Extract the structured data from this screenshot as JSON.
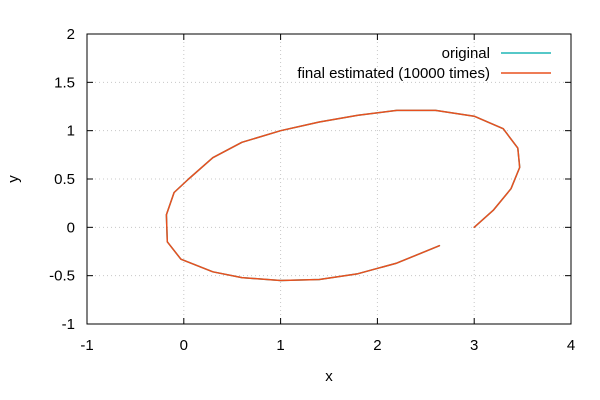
{
  "chart_data": {
    "type": "line",
    "title": "",
    "xlabel": "x",
    "ylabel": "y",
    "xlim": [
      -1,
      4
    ],
    "ylim": [
      -1,
      2
    ],
    "xticks": [
      "-1",
      "0",
      "1",
      "2",
      "3",
      "4"
    ],
    "yticks": [
      "-1",
      "-0.5",
      "0",
      "0.5",
      "1",
      "1.5",
      "2"
    ],
    "grid": true,
    "legend_position": "top-right",
    "series": [
      {
        "name": "original",
        "color": "#1fb5b5",
        "x": [
          3.0,
          3.2,
          3.38,
          3.47,
          3.45,
          3.3,
          3.0,
          2.6,
          2.2,
          1.8,
          1.4,
          1.0,
          0.6,
          0.3,
          0.05,
          -0.1,
          -0.18,
          -0.17,
          -0.03,
          0.3,
          0.6,
          1.0,
          1.4,
          1.8,
          2.2,
          2.64
        ],
        "y": [
          0.0,
          0.18,
          0.4,
          0.62,
          0.82,
          1.02,
          1.15,
          1.21,
          1.21,
          1.16,
          1.09,
          1.0,
          0.88,
          0.72,
          0.5,
          0.36,
          0.13,
          -0.15,
          -0.33,
          -0.46,
          -0.52,
          -0.55,
          -0.54,
          -0.48,
          -0.37,
          -0.19
        ]
      },
      {
        "name": "final estimated (10000 times)",
        "color": "#e8501f",
        "x": [
          3.0,
          3.2,
          3.38,
          3.47,
          3.45,
          3.3,
          3.0,
          2.6,
          2.2,
          1.8,
          1.4,
          1.0,
          0.6,
          0.3,
          0.05,
          -0.1,
          -0.18,
          -0.17,
          -0.03,
          0.3,
          0.6,
          1.0,
          1.4,
          1.8,
          2.2,
          2.64
        ],
        "y": [
          0.0,
          0.18,
          0.4,
          0.62,
          0.82,
          1.02,
          1.15,
          1.21,
          1.21,
          1.16,
          1.09,
          1.0,
          0.88,
          0.72,
          0.5,
          0.36,
          0.13,
          -0.15,
          -0.33,
          -0.46,
          -0.52,
          -0.55,
          -0.54,
          -0.48,
          -0.37,
          -0.19
        ]
      }
    ]
  }
}
